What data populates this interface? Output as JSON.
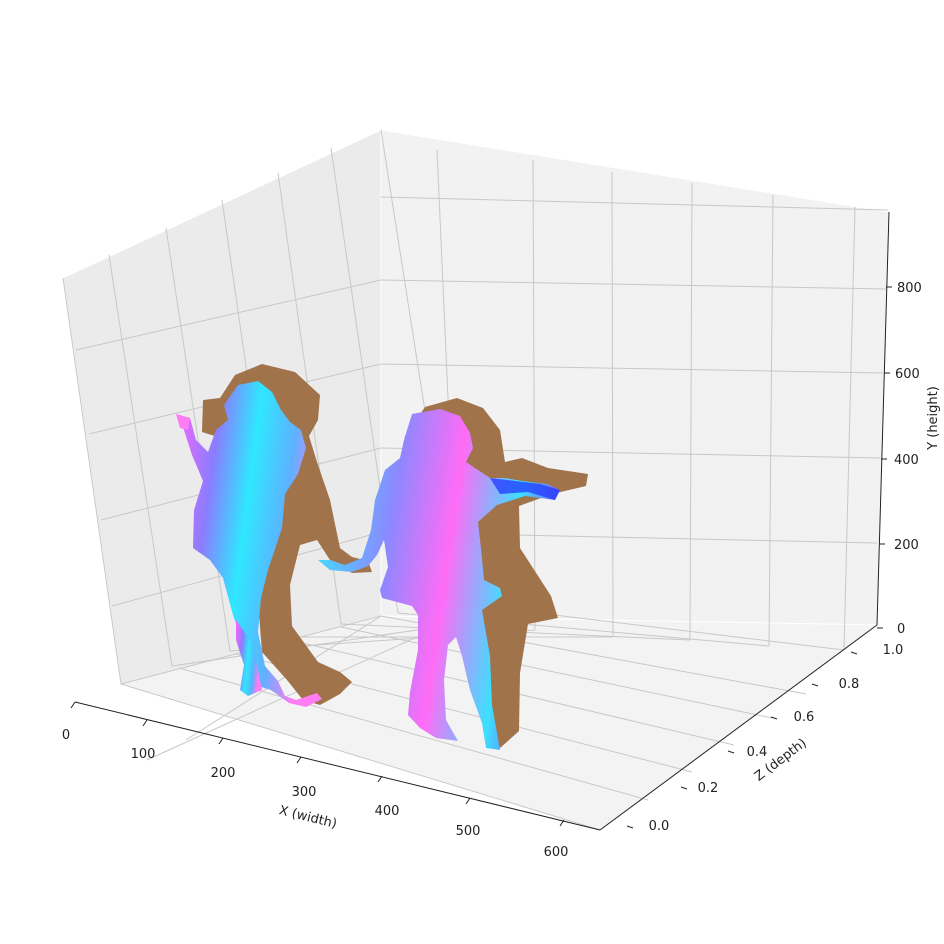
{
  "chart_data": {
    "type": "3d-surface",
    "x_axis": {
      "label": "X (width)",
      "ticks": [
        "0",
        "100",
        "200",
        "300",
        "400",
        "500",
        "600"
      ],
      "range": [
        0,
        620
      ]
    },
    "y_axis": {
      "label": "Y (height)",
      "ticks": [
        "0",
        "200",
        "400",
        "600",
        "800"
      ],
      "range": [
        0,
        950
      ]
    },
    "z_axis": {
      "label": "Z (depth)",
      "ticks": [
        "0.0",
        "0.2",
        "0.4",
        "0.6",
        "0.8",
        "1.0"
      ],
      "range": [
        -0.05,
        1.0
      ]
    },
    "grid": true,
    "surface": "two standing human figures rendered with normal-map colors, with brown silhouette shadows projected behind them",
    "colors": {
      "pane_left": "#ececec",
      "pane_back": "#f2f2f2",
      "pane_floor": "#f4f4f4",
      "shadow": "#a1734a",
      "normal_cyan": "#33e0ff",
      "normal_magenta": "#ff66ff",
      "normal_blue": "#7a7aff"
    }
  }
}
